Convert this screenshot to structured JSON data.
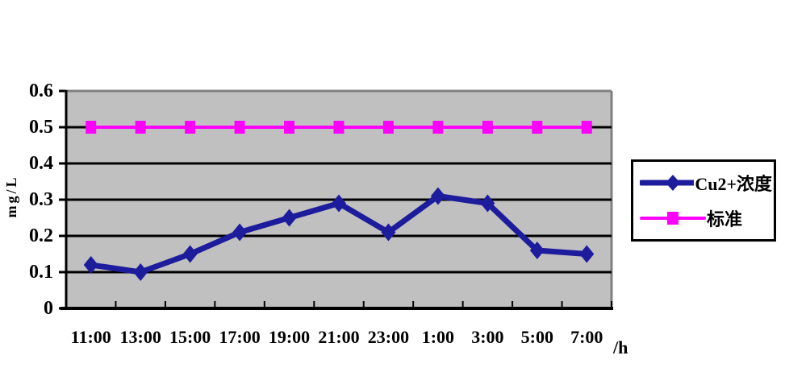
{
  "chart_data": {
    "type": "line",
    "title": "",
    "categories": [
      "11:00",
      "13:00",
      "15:00",
      "17:00",
      "19:00",
      "21:00",
      "23:00",
      "1:00",
      "3:00",
      "5:00",
      "7:00"
    ],
    "series": [
      {
        "name": "Cu2+浓度",
        "marker": "diamond",
        "color": "#1C1C9C",
        "line_width": 7,
        "values": [
          0.12,
          0.1,
          0.15,
          0.21,
          0.25,
          0.29,
          0.21,
          0.31,
          0.29,
          0.16,
          0.15
        ]
      },
      {
        "name": "标准",
        "marker": "square",
        "color": "#FF00FF",
        "line_width": 4,
        "values": [
          0.5,
          0.5,
          0.5,
          0.5,
          0.5,
          0.5,
          0.5,
          0.5,
          0.5,
          0.5,
          0.5
        ]
      }
    ],
    "ylabel": "mg/L",
    "x_unit_label": "/h",
    "ylim": [
      0,
      0.6
    ],
    "yticks": [
      0,
      0.1,
      0.2,
      0.3,
      0.4,
      0.5,
      0.6
    ],
    "ytick_labels": [
      "0",
      "0.1",
      "0.2",
      "0.3",
      "0.4",
      "0.5",
      "0.6"
    ],
    "grid": "horizontal-major",
    "legend_position": "right",
    "colors": {
      "plot_bg": "#C0C0C0",
      "grid": "#000000",
      "axis": "#000000",
      "plot_border": "#808080",
      "page_bg": "#FFFFFF",
      "legend_border": "#000000",
      "text": "#000000"
    }
  }
}
